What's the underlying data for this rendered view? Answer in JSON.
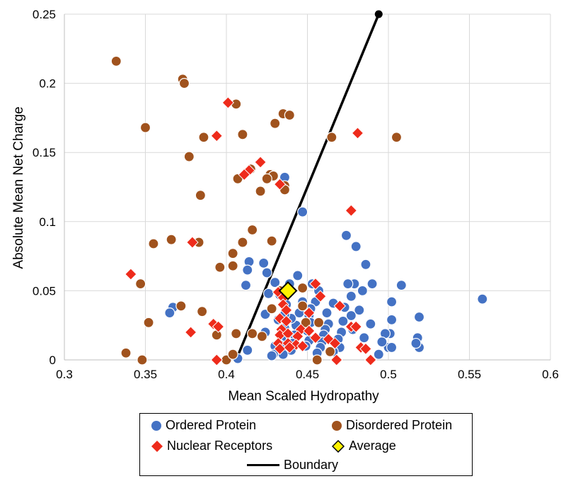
{
  "chart_data": {
    "type": "scatter",
    "title": "",
    "xlabel": "Mean Scaled Hydropathy",
    "ylabel": "Absolute Mean Net Charge",
    "xlim": [
      0.3,
      0.6
    ],
    "ylim": [
      0,
      0.25
    ],
    "xticks": [
      "0.3",
      "0.35",
      "0.4",
      "0.45",
      "0.5",
      "0.55",
      "0.6"
    ],
    "yticks": [
      "0",
      "0.05",
      "0.1",
      "0.15",
      "0.2",
      "0.25"
    ],
    "grid": true,
    "legend_placement": "bottom",
    "colors": {
      "ordered": "#4472C4",
      "disordered": "#A0521D",
      "nuclear": "#EE2B1B",
      "average": "#FFF200",
      "boundary": "#000000"
    },
    "legend": {
      "ordered": "Ordered Protein",
      "disordered": "Disordered Protein",
      "nuclear": "Nuclear Receptors",
      "average": "Average",
      "boundary": "Boundary"
    },
    "series": [
      {
        "name": "Ordered Protein",
        "marker": "circle",
        "points": [
          [
            0.558,
            0.044
          ],
          [
            0.519,
            0.031
          ],
          [
            0.518,
            0.016
          ],
          [
            0.519,
            0.009
          ],
          [
            0.517,
            0.012
          ],
          [
            0.508,
            0.054
          ],
          [
            0.502,
            0.042
          ],
          [
            0.502,
            0.029
          ],
          [
            0.501,
            0.019
          ],
          [
            0.5,
            0.009
          ],
          [
            0.502,
            0.009
          ],
          [
            0.498,
            0.019
          ],
          [
            0.496,
            0.013
          ],
          [
            0.494,
            0.004
          ],
          [
            0.49,
            0.055
          ],
          [
            0.489,
            0.026
          ],
          [
            0.486,
            0.069
          ],
          [
            0.484,
            0.05
          ],
          [
            0.485,
            0.016
          ],
          [
            0.482,
            0.036
          ],
          [
            0.48,
            0.082
          ],
          [
            0.479,
            0.055
          ],
          [
            0.477,
            0.046
          ],
          [
            0.477,
            0.032
          ],
          [
            0.478,
            0.022
          ],
          [
            0.474,
            0.09
          ],
          [
            0.475,
            0.055
          ],
          [
            0.473,
            0.038
          ],
          [
            0.472,
            0.028
          ],
          [
            0.471,
            0.02
          ],
          [
            0.469,
            0.015
          ],
          [
            0.47,
            0.009
          ],
          [
            0.466,
            0.006
          ],
          [
            0.466,
            0.041
          ],
          [
            0.463,
            0.026
          ],
          [
            0.462,
            0.034
          ],
          [
            0.461,
            0.022
          ],
          [
            0.46,
            0.018
          ],
          [
            0.459,
            0.013
          ],
          [
            0.458,
            0.009
          ],
          [
            0.456,
            0.005
          ],
          [
            0.457,
            0.05
          ],
          [
            0.455,
            0.042
          ],
          [
            0.453,
            0.055
          ],
          [
            0.452,
            0.037
          ],
          [
            0.451,
            0.032
          ],
          [
            0.452,
            0.027
          ],
          [
            0.45,
            0.021
          ],
          [
            0.451,
            0.014
          ],
          [
            0.449,
            0.01
          ],
          [
            0.447,
            0.107
          ],
          [
            0.447,
            0.042
          ],
          [
            0.444,
            0.061
          ],
          [
            0.445,
            0.034
          ],
          [
            0.443,
            0.025
          ],
          [
            0.442,
            0.018
          ],
          [
            0.441,
            0.012
          ],
          [
            0.44,
            0.007
          ],
          [
            0.44,
            0.03
          ],
          [
            0.439,
            0.055
          ],
          [
            0.437,
            0.04
          ],
          [
            0.436,
            0.033
          ],
          [
            0.436,
            0.023
          ],
          [
            0.434,
            0.015
          ],
          [
            0.433,
            0.011
          ],
          [
            0.435,
            0.004
          ],
          [
            0.436,
            0.132
          ],
          [
            0.433,
            0.047
          ],
          [
            0.432,
            0.029
          ],
          [
            0.43,
            0.01
          ],
          [
            0.429,
            0.004
          ],
          [
            0.428,
            0.003
          ],
          [
            0.43,
            0.056
          ],
          [
            0.425,
            0.063
          ],
          [
            0.426,
            0.048
          ],
          [
            0.424,
            0.033
          ],
          [
            0.424,
            0.02
          ],
          [
            0.423,
            0.07
          ],
          [
            0.414,
            0.071
          ],
          [
            0.413,
            0.065
          ],
          [
            0.412,
            0.054
          ],
          [
            0.413,
            0.007
          ],
          [
            0.407,
            0.001
          ],
          [
            0.367,
            0.038
          ],
          [
            0.365,
            0.034
          ]
        ]
      },
      {
        "name": "Disordered Protein",
        "marker": "circle",
        "points": [
          [
            0.332,
            0.216
          ],
          [
            0.373,
            0.203
          ],
          [
            0.374,
            0.2
          ],
          [
            0.406,
            0.185
          ],
          [
            0.435,
            0.178
          ],
          [
            0.439,
            0.177
          ],
          [
            0.43,
            0.171
          ],
          [
            0.35,
            0.168
          ],
          [
            0.41,
            0.163
          ],
          [
            0.386,
            0.161
          ],
          [
            0.465,
            0.161
          ],
          [
            0.505,
            0.161
          ],
          [
            0.377,
            0.147
          ],
          [
            0.415,
            0.138
          ],
          [
            0.427,
            0.134
          ],
          [
            0.429,
            0.133
          ],
          [
            0.425,
            0.131
          ],
          [
            0.407,
            0.131
          ],
          [
            0.436,
            0.126
          ],
          [
            0.421,
            0.122
          ],
          [
            0.436,
            0.123
          ],
          [
            0.384,
            0.119
          ],
          [
            0.416,
            0.094
          ],
          [
            0.41,
            0.085
          ],
          [
            0.366,
            0.087
          ],
          [
            0.383,
            0.085
          ],
          [
            0.355,
            0.084
          ],
          [
            0.428,
            0.086
          ],
          [
            0.404,
            0.077
          ],
          [
            0.404,
            0.068
          ],
          [
            0.396,
            0.067
          ],
          [
            0.347,
            0.055
          ],
          [
            0.385,
            0.035
          ],
          [
            0.372,
            0.039
          ],
          [
            0.352,
            0.027
          ],
          [
            0.428,
            0.037
          ],
          [
            0.433,
            0.05
          ],
          [
            0.447,
            0.052
          ],
          [
            0.447,
            0.039
          ],
          [
            0.406,
            0.019
          ],
          [
            0.416,
            0.019
          ],
          [
            0.394,
            0.018
          ],
          [
            0.422,
            0.017
          ],
          [
            0.449,
            0.027
          ],
          [
            0.457,
            0.027
          ],
          [
            0.338,
            0.005
          ],
          [
            0.348,
            0.0
          ],
          [
            0.4,
            0.0
          ],
          [
            0.404,
            0.004
          ],
          [
            0.456,
            0.0
          ],
          [
            0.464,
            0.006
          ]
        ]
      },
      {
        "name": "Nuclear Receptors",
        "marker": "diamond",
        "points": [
          [
            0.401,
            0.186
          ],
          [
            0.394,
            0.162
          ],
          [
            0.481,
            0.164
          ],
          [
            0.421,
            0.143
          ],
          [
            0.414,
            0.137
          ],
          [
            0.411,
            0.134
          ],
          [
            0.433,
            0.127
          ],
          [
            0.477,
            0.108
          ],
          [
            0.379,
            0.085
          ],
          [
            0.341,
            0.062
          ],
          [
            0.455,
            0.055
          ],
          [
            0.432,
            0.049
          ],
          [
            0.435,
            0.045
          ],
          [
            0.458,
            0.046
          ],
          [
            0.435,
            0.04
          ],
          [
            0.437,
            0.036
          ],
          [
            0.47,
            0.039
          ],
          [
            0.433,
            0.03
          ],
          [
            0.437,
            0.028
          ],
          [
            0.451,
            0.034
          ],
          [
            0.378,
            0.02
          ],
          [
            0.392,
            0.026
          ],
          [
            0.395,
            0.024
          ],
          [
            0.434,
            0.022
          ],
          [
            0.446,
            0.022
          ],
          [
            0.451,
            0.021
          ],
          [
            0.477,
            0.024
          ],
          [
            0.48,
            0.024
          ],
          [
            0.433,
            0.018
          ],
          [
            0.438,
            0.019
          ],
          [
            0.444,
            0.017
          ],
          [
            0.455,
            0.016
          ],
          [
            0.463,
            0.015
          ],
          [
            0.432,
            0.012
          ],
          [
            0.438,
            0.012
          ],
          [
            0.443,
            0.011
          ],
          [
            0.433,
            0.008
          ],
          [
            0.439,
            0.009
          ],
          [
            0.447,
            0.01
          ],
          [
            0.467,
            0.012
          ],
          [
            0.483,
            0.009
          ],
          [
            0.486,
            0.008
          ],
          [
            0.394,
            0.0
          ],
          [
            0.468,
            0.0
          ],
          [
            0.489,
            0.0
          ]
        ]
      },
      {
        "name": "Average",
        "marker": "diamond",
        "points": [
          [
            0.438,
            0.05
          ]
        ]
      },
      {
        "name": "Boundary",
        "marker": "line",
        "points": [
          [
            0.406,
            0.0
          ],
          [
            0.494,
            0.25
          ]
        ]
      }
    ]
  }
}
